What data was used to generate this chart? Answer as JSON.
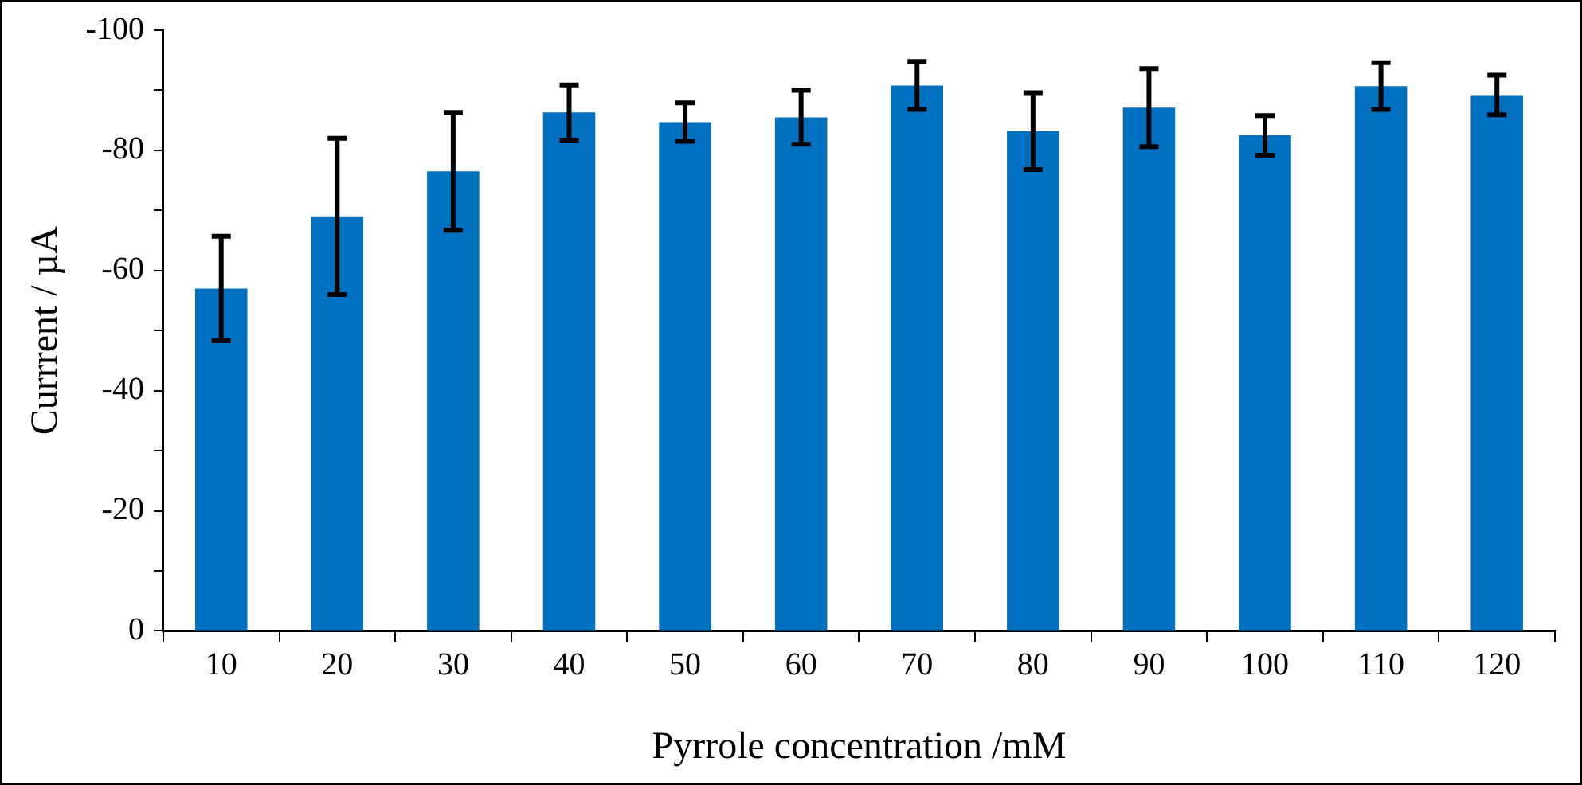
{
  "chart_data": {
    "type": "bar",
    "xlabel": "Pyrrole concentration /mM",
    "ylabel": "Currrent / µA",
    "categories": [
      "10",
      "20",
      "30",
      "40",
      "50",
      "60",
      "70",
      "80",
      "90",
      "100",
      "110",
      "120"
    ],
    "values": [
      -57,
      -69,
      -76.5,
      -86.3,
      -84.7,
      -85.5,
      -90.8,
      -83.2,
      -87.1,
      -82.5,
      -90.7,
      -89.2
    ],
    "errors": [
      8.7,
      13,
      9.8,
      4.6,
      3.2,
      4.5,
      4,
      6.4,
      6.5,
      3.3,
      3.9,
      3.3
    ],
    "color": "#0070c0",
    "ylim": [
      0,
      -100
    ],
    "yticks": [
      0,
      {
        "value": -10,
        "label": null
      },
      -20,
      {
        "value": -30,
        "label": null
      },
      -40,
      {
        "value": -50,
        "label": null
      },
      -60,
      {
        "value": -70,
        "label": null
      },
      -80,
      {
        "value": -90,
        "label": null
      },
      -100
    ],
    "grid": false,
    "legend": false
  }
}
